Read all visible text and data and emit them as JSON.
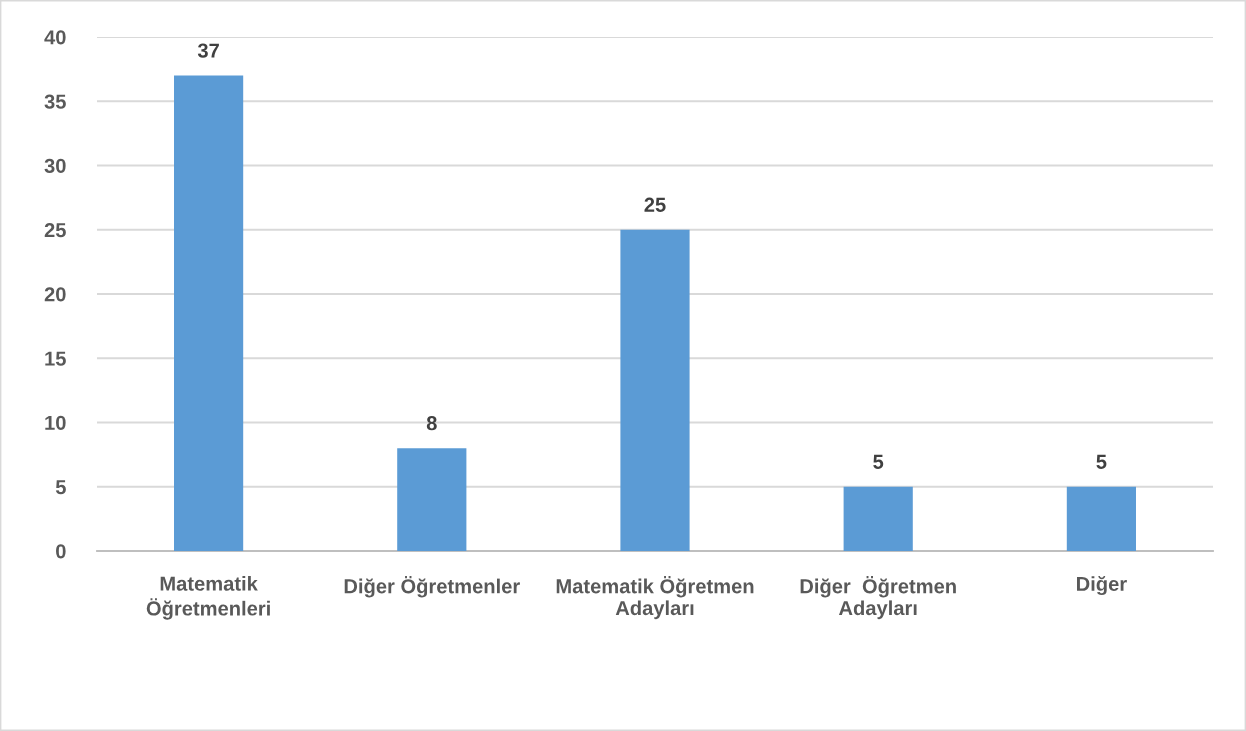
{
  "chart_data": {
    "type": "bar",
    "categories": [
      "Matematik Öğretmenleri",
      "Diğer Öğretmenler",
      "Matematik Öğretmen Adayları",
      "Diğer  Öğretmen Adayları",
      "Diğer"
    ],
    "values": [
      37,
      8,
      25,
      5,
      5
    ],
    "color": "#5b9bd5",
    "ylim": [
      0,
      40
    ],
    "yticks": [
      0,
      5,
      10,
      15,
      20,
      25,
      30,
      35,
      40
    ],
    "grid": "y",
    "data_labels": true
  }
}
